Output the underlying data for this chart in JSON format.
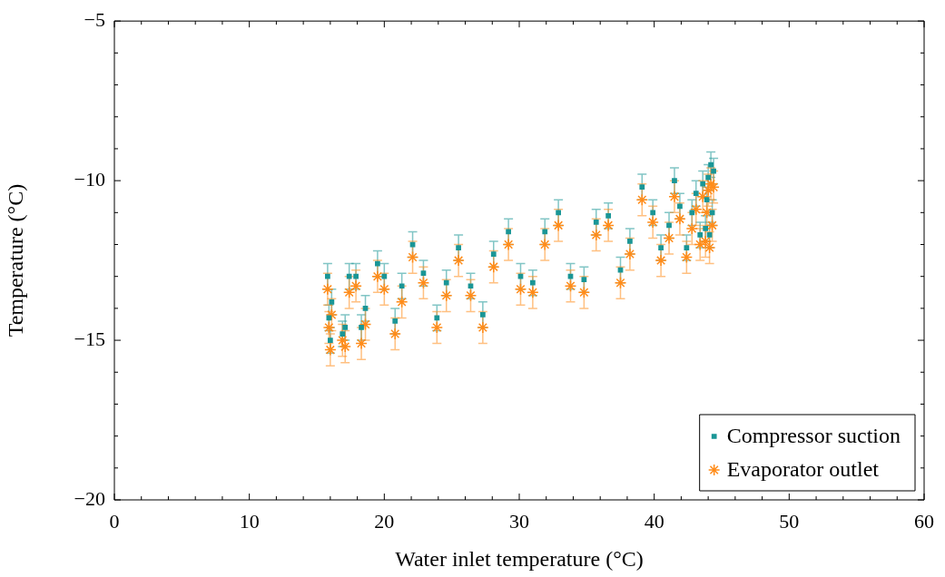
{
  "chart_data": {
    "type": "scatter",
    "xlabel": "Water inlet temperature (°C)",
    "ylabel": "Temperature (°C)",
    "xlim": [
      0,
      60
    ],
    "ylim": [
      -20,
      -5
    ],
    "xticks": [
      0,
      {
        "value": 2,
        "label": null
      },
      {
        "value": 4,
        "label": null
      },
      {
        "value": 6,
        "label": null
      },
      {
        "value": 8,
        "label": null
      },
      10,
      {
        "value": 12,
        "label": null
      },
      {
        "value": 14,
        "label": null
      },
      {
        "value": 16,
        "label": null
      },
      {
        "value": 18,
        "label": null
      },
      20,
      {
        "value": 22,
        "label": null
      },
      {
        "value": 24,
        "label": null
      },
      {
        "value": 26,
        "label": null
      },
      {
        "value": 28,
        "label": null
      },
      30,
      {
        "value": 32,
        "label": null
      },
      {
        "value": 34,
        "label": null
      },
      {
        "value": 36,
        "label": null
      },
      {
        "value": 38,
        "label": null
      },
      40,
      {
        "value": 42,
        "label": null
      },
      {
        "value": 44,
        "label": null
      },
      {
        "value": 46,
        "label": null
      },
      {
        "value": 48,
        "label": null
      },
      50,
      {
        "value": 52,
        "label": null
      },
      {
        "value": 54,
        "label": null
      },
      {
        "value": 56,
        "label": null
      },
      {
        "value": 58,
        "label": null
      },
      60
    ],
    "yticks": [
      -20,
      {
        "value": -19,
        "label": null
      },
      {
        "value": -18,
        "label": null
      },
      {
        "value": -17,
        "label": null
      },
      {
        "value": -16,
        "label": null
      },
      -15,
      {
        "value": -14,
        "label": null
      },
      {
        "value": -13,
        "label": null
      },
      {
        "value": -12,
        "label": null
      },
      {
        "value": -11,
        "label": null
      },
      -10,
      {
        "value": -9,
        "label": null
      },
      {
        "value": -8,
        "label": null
      },
      {
        "value": -7,
        "label": null
      },
      {
        "value": -6,
        "label": null
      },
      -5
    ],
    "x": [
      15.8,
      15.9,
      16.0,
      16.1,
      16.9,
      17.1,
      17.4,
      17.9,
      18.3,
      18.6,
      19.5,
      20.0,
      20.8,
      21.3,
      22.1,
      22.9,
      23.9,
      24.6,
      25.5,
      26.4,
      27.3,
      28.1,
      29.2,
      30.1,
      31.0,
      31.9,
      32.9,
      33.8,
      34.8,
      35.7,
      36.6,
      37.5,
      38.2,
      39.1,
      39.9,
      40.5,
      41.1,
      41.5,
      41.9,
      42.4,
      42.8,
      43.1,
      43.4,
      43.6,
      43.8,
      43.9,
      44.0,
      44.1,
      44.2,
      44.3,
      44.4
    ],
    "series": [
      {
        "name": "Compressor suction",
        "color": "#1a9696",
        "marker": "square",
        "values": [
          -13.0,
          -14.3,
          -15.0,
          -13.8,
          -14.8,
          -14.6,
          -13.0,
          -13.0,
          -14.6,
          -14.0,
          -12.6,
          -13.0,
          -14.4,
          -13.3,
          -12.0,
          -12.9,
          -14.3,
          -13.2,
          -12.1,
          -13.3,
          -14.2,
          -12.3,
          -11.6,
          -13.0,
          -13.2,
          -11.6,
          -11.0,
          -13.0,
          -13.1,
          -11.3,
          -11.1,
          -12.8,
          -11.9,
          -10.2,
          -11.0,
          -12.1,
          -11.4,
          -10.0,
          -10.8,
          -12.1,
          -11.0,
          -10.4,
          -11.7,
          -10.1,
          -11.5,
          -10.6,
          -9.9,
          -11.7,
          -9.5,
          -11.0,
          -9.7
        ],
        "errors": [
          0.4,
          0.4,
          0.4,
          0.4,
          0.4,
          0.4,
          0.4,
          0.4,
          0.4,
          0.4,
          0.4,
          0.4,
          0.4,
          0.4,
          0.4,
          0.4,
          0.4,
          0.4,
          0.4,
          0.4,
          0.4,
          0.4,
          0.4,
          0.4,
          0.4,
          0.4,
          0.4,
          0.4,
          0.4,
          0.4,
          0.4,
          0.4,
          0.4,
          0.4,
          0.4,
          0.4,
          0.4,
          0.4,
          0.4,
          0.4,
          0.4,
          0.4,
          0.4,
          0.4,
          0.4,
          0.4,
          0.4,
          0.4,
          0.4,
          0.4,
          0.4
        ]
      },
      {
        "name": "Evaporator outlet",
        "color": "#ff8c1a",
        "marker": "cross",
        "values": [
          -13.4,
          -14.6,
          -15.3,
          -14.2,
          -15.0,
          -15.2,
          -13.5,
          -13.3,
          -15.1,
          -14.5,
          -13.0,
          -13.4,
          -14.8,
          -13.8,
          -12.4,
          -13.2,
          -14.6,
          -13.6,
          -12.5,
          -13.6,
          -14.6,
          -12.7,
          -12.0,
          -13.4,
          -13.5,
          -12.0,
          -11.4,
          -13.3,
          -13.5,
          -11.7,
          -11.4,
          -13.2,
          -12.3,
          -10.6,
          -11.3,
          -12.5,
          -11.8,
          -10.5,
          -11.2,
          -12.4,
          -11.5,
          -10.9,
          -12.0,
          -10.5,
          -11.9,
          -11.0,
          -10.3,
          -12.1,
          -10.1,
          -11.4,
          -10.2
        ],
        "errors": [
          0.5,
          0.5,
          0.5,
          0.5,
          0.5,
          0.5,
          0.5,
          0.5,
          0.5,
          0.5,
          0.5,
          0.5,
          0.5,
          0.5,
          0.5,
          0.5,
          0.5,
          0.5,
          0.5,
          0.5,
          0.5,
          0.5,
          0.5,
          0.5,
          0.5,
          0.5,
          0.5,
          0.5,
          0.5,
          0.5,
          0.5,
          0.5,
          0.5,
          0.5,
          0.5,
          0.5,
          0.5,
          0.5,
          0.5,
          0.5,
          0.5,
          0.5,
          0.5,
          0.5,
          0.5,
          0.5,
          0.5,
          0.5,
          0.5,
          0.5,
          0.5
        ]
      }
    ],
    "legend": "bottom right"
  }
}
